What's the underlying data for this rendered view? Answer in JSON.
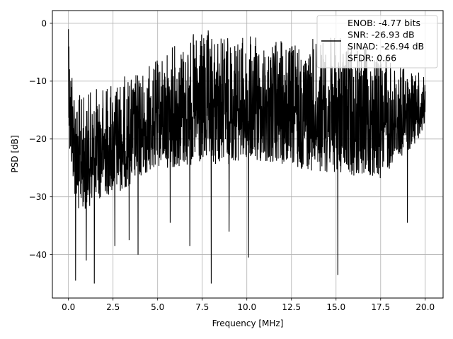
{
  "chart_data": {
    "type": "line",
    "title": "",
    "xlabel": "Frequency [MHz]",
    "ylabel": "PSD [dB]",
    "xlim": [
      -0.9,
      21.0
    ],
    "ylim": [
      -47.5,
      2.2
    ],
    "xticks": [
      0.0,
      2.5,
      5.0,
      7.5,
      10.0,
      12.5,
      15.0,
      17.5,
      20.0
    ],
    "xtick_labels": [
      "0.0",
      "2.5",
      "5.0",
      "7.5",
      "10.0",
      "12.5",
      "15.0",
      "17.5",
      "20.0"
    ],
    "yticks": [
      0,
      -10,
      -20,
      -30,
      -40
    ],
    "ytick_labels": [
      "0",
      "−10",
      "−20",
      "−30",
      "−40"
    ],
    "grid": true,
    "legend_placement": "top-right",
    "legend_lines": [
      "ENOB: -4.77 bits",
      "SNR: -26.93 dB",
      "SINAD: -26.94 dB",
      "SFDR: 0.66"
    ],
    "series_color": "#000000",
    "series": [
      {
        "x_start": 0.0,
        "x_end": 20.0,
        "num_points": 2000,
        "upper_envelope": [
          [
            0.0,
            -1.0
          ],
          [
            0.5,
            -12
          ],
          [
            1.0,
            -12
          ],
          [
            2.0,
            -10
          ],
          [
            3.0,
            -9
          ],
          [
            4.0,
            -8
          ],
          [
            5.0,
            -6
          ],
          [
            6.0,
            -3
          ],
          [
            7.5,
            -1
          ],
          [
            10.0,
            -2
          ],
          [
            12.5,
            -3
          ],
          [
            15.0,
            -2
          ],
          [
            17.5,
            -5
          ],
          [
            20.0,
            -9
          ]
        ],
        "lower_envelope": [
          [
            0.0,
            -22
          ],
          [
            0.5,
            -33
          ],
          [
            1.0,
            -32
          ],
          [
            2.0,
            -30
          ],
          [
            3.0,
            -29
          ],
          [
            4.0,
            -27
          ],
          [
            5.0,
            -25
          ],
          [
            7.5,
            -25
          ],
          [
            10.0,
            -24
          ],
          [
            12.5,
            -25
          ],
          [
            15.0,
            -26
          ],
          [
            17.5,
            -27
          ],
          [
            20.0,
            -19
          ]
        ],
        "notable_points": [
          [
            0.0,
            -1.0
          ],
          [
            0.03,
            -4.0
          ],
          [
            0.4,
            -44.5
          ],
          [
            1.0,
            -41.0
          ],
          [
            1.45,
            -45.0
          ],
          [
            2.6,
            -38.5
          ],
          [
            3.4,
            -37.5
          ],
          [
            3.9,
            -40.0
          ],
          [
            5.7,
            -34.5
          ],
          [
            6.8,
            -38.5
          ],
          [
            8.0,
            -45.0
          ],
          [
            9.0,
            -36.0
          ],
          [
            10.1,
            -40.5
          ],
          [
            15.1,
            -43.5
          ],
          [
            19.0,
            -34.5
          ]
        ]
      }
    ]
  }
}
